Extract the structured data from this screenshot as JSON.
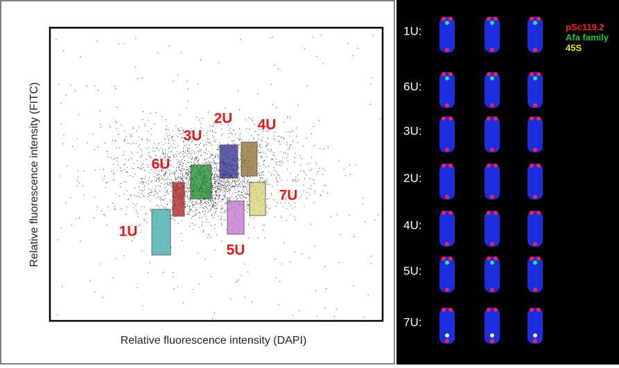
{
  "plot": {
    "x_label": "Relative fluorescence intensity (DAPI)",
    "y_label": "Relative fluorescence intensity (FITC)",
    "gates": [
      "1U",
      "6U",
      "3U",
      "2U",
      "4U",
      "7U",
      "5U"
    ]
  },
  "karyotype": {
    "rows": [
      "1U:",
      "6U:",
      "3U:",
      "2U:",
      "4U:",
      "5U:",
      "7U:"
    ],
    "legend": [
      "pSc119.2",
      "Afa family",
      "45S"
    ]
  }
}
